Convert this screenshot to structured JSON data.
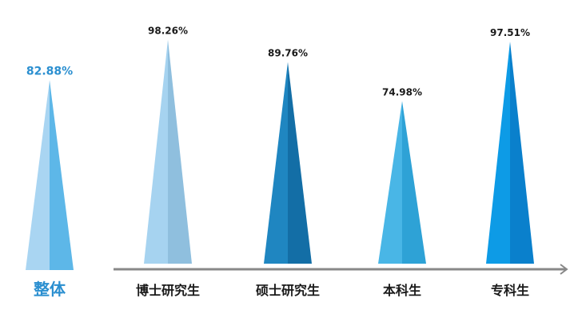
{
  "chart_data": {
    "type": "bar",
    "title": "",
    "xlabel": "",
    "ylabel": "",
    "ylim": [
      0,
      100
    ],
    "overall": {
      "category": "整体",
      "value": 82.88,
      "label": "82.88%",
      "colors": {
        "light": "#a9d5f2",
        "dark": "#5db7e8"
      }
    },
    "categories": [
      "博士研究生",
      "硕士研究生",
      "本科生",
      "专科生"
    ],
    "values": [
      98.26,
      89.76,
      74.98,
      97.51
    ],
    "labels": [
      "98.26%",
      "89.76%",
      "74.98%",
      "97.51%"
    ],
    "colors": [
      {
        "light": "#a6d3f0",
        "dark": "#8fbfde"
      },
      {
        "light": "#1f86c1",
        "dark": "#136ea6"
      },
      {
        "light": "#49b6e6",
        "dark": "#2ea2d6"
      },
      {
        "light": "#0d9be6",
        "dark": "#0a80cc"
      }
    ],
    "axis_color": "#888888"
  }
}
